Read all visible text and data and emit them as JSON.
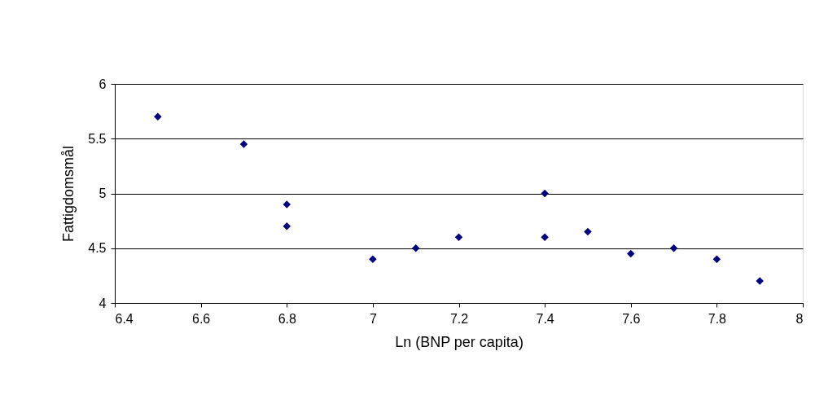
{
  "chart_data": {
    "type": "scatter",
    "xlabel": "Ln (BNP per capita)",
    "ylabel": "Fattigdomsmål",
    "x": [
      6.5,
      6.7,
      6.8,
      6.8,
      7.0,
      7.1,
      7.2,
      7.4,
      7.4,
      7.5,
      7.6,
      7.7,
      7.8,
      7.9
    ],
    "series": [
      {
        "color": "#000080",
        "values": [
          5.7,
          5.45,
          4.9,
          4.7,
          4.4,
          4.5,
          4.6,
          5.0,
          4.6,
          4.65,
          4.45,
          4.5,
          4.4,
          4.2
        ]
      }
    ],
    "xlim": [
      6.4,
      8
    ],
    "xticks": [
      6.4,
      6.6,
      6.8,
      7,
      7.2,
      7.4,
      7.6,
      7.8,
      8
    ],
    "ylim": [
      4,
      6
    ],
    "yticks": [
      4,
      4.5,
      5,
      5.5,
      6
    ],
    "grid": "y",
    "marker": "diamond"
  }
}
